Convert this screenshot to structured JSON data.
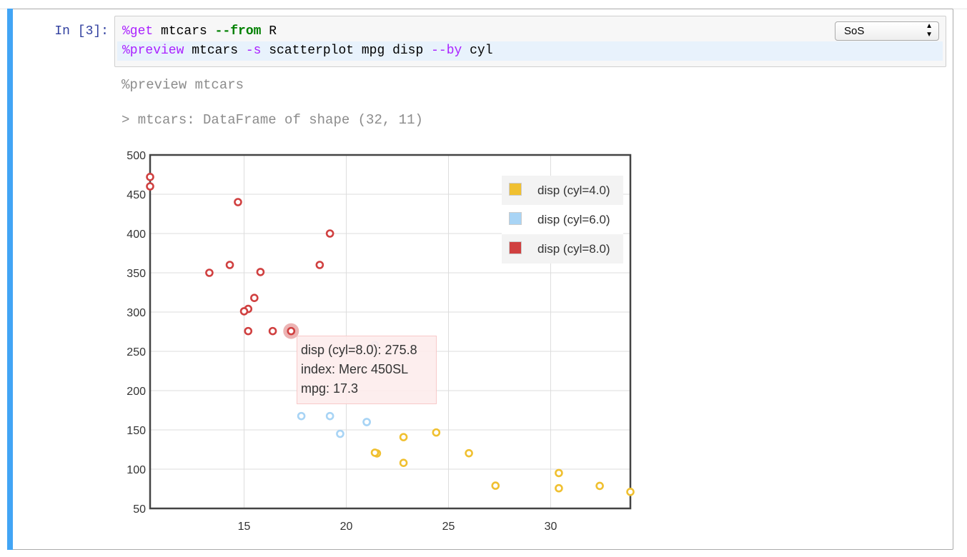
{
  "cell": {
    "prompt": "In [3]:",
    "code": {
      "line1": {
        "magic": "%get",
        "text1": " mtcars ",
        "flag": "--from",
        "text2": " R"
      },
      "line2": {
        "magic": "%preview",
        "text1": " mtcars ",
        "flag1": "-s",
        "text2": " scatterplot mpg disp ",
        "flag2": "--by",
        "text3": " cyl"
      }
    },
    "kernel": "SoS"
  },
  "output": {
    "line1": "%preview mtcars",
    "line2": "> mtcars: DataFrame of shape (32, 11)"
  },
  "tooltip": {
    "line1": "disp (cyl=8.0): 275.8",
    "line2": "index: Merc 450SL",
    "line3": "mpg: 17.3"
  },
  "chart_data": {
    "type": "scatter",
    "xlim": [
      10.4,
      33.9
    ],
    "ylim": [
      50,
      500
    ],
    "xticks": [
      15,
      20,
      25,
      30
    ],
    "yticks": [
      50,
      100,
      150,
      200,
      250,
      300,
      350,
      400,
      450,
      500
    ],
    "grid": true,
    "legend_position": "top-right",
    "highlight": {
      "series": 2,
      "x": 17.3,
      "y": 275.8
    },
    "series": [
      {
        "name": "disp (cyl=4.0)",
        "color": "#f0c030",
        "points": [
          [
            22.8,
            108
          ],
          [
            24.4,
            146.7
          ],
          [
            22.8,
            140.8
          ],
          [
            32.4,
            78.7
          ],
          [
            30.4,
            75.7
          ],
          [
            33.9,
            71.1
          ],
          [
            21.5,
            120.1
          ],
          [
            27.3,
            79
          ],
          [
            26,
            120.3
          ],
          [
            30.4,
            95.1
          ],
          [
            21.4,
            121
          ]
        ]
      },
      {
        "name": "disp (cyl=6.0)",
        "color": "#a8d4f5",
        "points": [
          [
            21,
            160
          ],
          [
            21,
            160
          ],
          [
            21.4,
            258
          ],
          [
            18.1,
            225
          ],
          [
            19.2,
            167.6
          ],
          [
            17.8,
            167.6
          ],
          [
            19.7,
            145
          ]
        ]
      },
      {
        "name": "disp (cyl=8.0)",
        "color": "#d04040",
        "points": [
          [
            18.7,
            360
          ],
          [
            14.3,
            360
          ],
          [
            16.4,
            275.8
          ],
          [
            17.3,
            275.8
          ],
          [
            15.2,
            275.8
          ],
          [
            10.4,
            472
          ],
          [
            10.4,
            460
          ],
          [
            14.7,
            440
          ],
          [
            15.5,
            318
          ],
          [
            15.2,
            304
          ],
          [
            13.3,
            350
          ],
          [
            19.2,
            400
          ],
          [
            15.8,
            351
          ],
          [
            15,
            301
          ]
        ]
      }
    ]
  }
}
